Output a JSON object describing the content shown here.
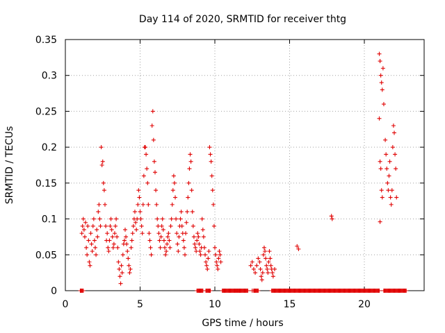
{
  "chart_data": {
    "type": "scatter",
    "title": "Day 114 of 2020, SRMTID for receiver thtg",
    "xlabel": "GPS time / hours",
    "ylabel": "SRMTID / TECUs",
    "xlim": [
      0,
      24
    ],
    "ylim": [
      0,
      0.35
    ],
    "xticks": [
      0,
      5,
      10,
      15,
      20
    ],
    "xtick_labels": [
      "0",
      "5",
      "10",
      "15",
      "20"
    ],
    "yticks": [
      0,
      0.05,
      0.1,
      0.15,
      0.2,
      0.25,
      0.3,
      0.35
    ],
    "ytick_labels": [
      "0",
      "0.05",
      "0.1",
      "0.15",
      "0.2",
      "0.25",
      "0.3",
      "0.35"
    ],
    "grid": true,
    "marker": "+",
    "color": "#e00000",
    "series": [
      {
        "name": "SRMTID",
        "points": [
          [
            1.0,
            0.0
          ],
          [
            1.1,
            0.08
          ],
          [
            1.15,
            0.09
          ],
          [
            1.2,
            0.1
          ],
          [
            1.25,
            0.085
          ],
          [
            1.3,
            0.075
          ],
          [
            1.35,
            0.095
          ],
          [
            1.4,
            0.06
          ],
          [
            1.45,
            0.05
          ],
          [
            1.5,
            0.09
          ],
          [
            1.55,
            0.07
          ],
          [
            1.6,
            0.04
          ],
          [
            1.65,
            0.035
          ],
          [
            1.7,
            0.08
          ],
          [
            1.75,
            0.065
          ],
          [
            1.8,
            0.055
          ],
          [
            1.85,
            0.09
          ],
          [
            1.9,
            0.1
          ],
          [
            1.95,
            0.07
          ],
          [
            2.0,
            0.06
          ],
          [
            2.05,
            0.05
          ],
          [
            2.1,
            0.085
          ],
          [
            2.15,
            0.075
          ],
          [
            2.2,
            0.11
          ],
          [
            2.25,
            0.12
          ],
          [
            2.3,
            0.1
          ],
          [
            2.35,
            0.09
          ],
          [
            2.4,
            0.2
          ],
          [
            2.45,
            0.175
          ],
          [
            2.5,
            0.18
          ],
          [
            2.55,
            0.15
          ],
          [
            2.6,
            0.14
          ],
          [
            2.65,
            0.12
          ],
          [
            2.7,
            0.09
          ],
          [
            2.75,
            0.07
          ],
          [
            2.8,
            0.08
          ],
          [
            2.85,
            0.06
          ],
          [
            2.9,
            0.055
          ],
          [
            2.95,
            0.07
          ],
          [
            3.0,
            0.09
          ],
          [
            3.05,
            0.1
          ],
          [
            3.1,
            0.085
          ],
          [
            3.15,
            0.075
          ],
          [
            3.2,
            0.06
          ],
          [
            3.25,
            0.065
          ],
          [
            3.3,
            0.08
          ],
          [
            3.35,
            0.09
          ],
          [
            3.4,
            0.1
          ],
          [
            3.45,
            0.075
          ],
          [
            3.5,
            0.06
          ],
          [
            3.55,
            0.04
          ],
          [
            3.6,
            0.03
          ],
          [
            3.65,
            0.02
          ],
          [
            3.7,
            0.01
          ],
          [
            3.75,
            0.035
          ],
          [
            3.8,
            0.025
          ],
          [
            3.85,
            0.05
          ],
          [
            3.9,
            0.065
          ],
          [
            3.95,
            0.07
          ],
          [
            4.0,
            0.085
          ],
          [
            4.05,
            0.075
          ],
          [
            4.1,
            0.065
          ],
          [
            4.15,
            0.055
          ],
          [
            4.2,
            0.045
          ],
          [
            4.25,
            0.035
          ],
          [
            4.3,
            0.025
          ],
          [
            4.35,
            0.03
          ],
          [
            4.4,
            0.06
          ],
          [
            4.45,
            0.07
          ],
          [
            4.5,
            0.08
          ],
          [
            4.55,
            0.09
          ],
          [
            4.6,
            0.1
          ],
          [
            4.65,
            0.11
          ],
          [
            4.7,
            0.095
          ],
          [
            4.75,
            0.085
          ],
          [
            4.8,
            0.1
          ],
          [
            4.85,
            0.12
          ],
          [
            4.9,
            0.14
          ],
          [
            4.95,
            0.13
          ],
          [
            5.0,
            0.11
          ],
          [
            5.05,
            0.1
          ],
          [
            5.1,
            0.09
          ],
          [
            5.15,
            0.08
          ],
          [
            5.2,
            0.12
          ],
          [
            5.25,
            0.16
          ],
          [
            5.3,
            0.2
          ],
          [
            5.35,
            0.2
          ],
          [
            5.4,
            0.19
          ],
          [
            5.45,
            0.17
          ],
          [
            5.5,
            0.15
          ],
          [
            5.55,
            0.12
          ],
          [
            5.6,
            0.08
          ],
          [
            5.65,
            0.07
          ],
          [
            5.7,
            0.06
          ],
          [
            5.75,
            0.05
          ],
          [
            5.8,
            0.23
          ],
          [
            5.85,
            0.25
          ],
          [
            5.9,
            0.21
          ],
          [
            5.95,
            0.18
          ],
          [
            6.0,
            0.165
          ],
          [
            6.05,
            0.14
          ],
          [
            6.1,
            0.12
          ],
          [
            6.15,
            0.1
          ],
          [
            6.2,
            0.09
          ],
          [
            6.25,
            0.08
          ],
          [
            6.3,
            0.07
          ],
          [
            6.35,
            0.06
          ],
          [
            6.4,
            0.075
          ],
          [
            6.45,
            0.09
          ],
          [
            6.5,
            0.1
          ],
          [
            6.55,
            0.085
          ],
          [
            6.6,
            0.07
          ],
          [
            6.65,
            0.06
          ],
          [
            6.7,
            0.05
          ],
          [
            6.75,
            0.055
          ],
          [
            6.8,
            0.065
          ],
          [
            6.85,
            0.075
          ],
          [
            6.9,
            0.08
          ],
          [
            6.95,
            0.07
          ],
          [
            7.0,
            0.06
          ],
          [
            7.05,
            0.09
          ],
          [
            7.1,
            0.1
          ],
          [
            7.15,
            0.12
          ],
          [
            7.2,
            0.14
          ],
          [
            7.25,
            0.16
          ],
          [
            7.3,
            0.15
          ],
          [
            7.35,
            0.13
          ],
          [
            7.4,
            0.1
          ],
          [
            7.45,
            0.08
          ],
          [
            7.5,
            0.065
          ],
          [
            7.55,
            0.055
          ],
          [
            7.6,
            0.075
          ],
          [
            7.65,
            0.09
          ],
          [
            7.7,
            0.1
          ],
          [
            7.75,
            0.11
          ],
          [
            7.8,
            0.09
          ],
          [
            7.85,
            0.08
          ],
          [
            7.9,
            0.07
          ],
          [
            7.95,
            0.06
          ],
          [
            8.0,
            0.05
          ],
          [
            8.05,
            0.08
          ],
          [
            8.1,
            0.095
          ],
          [
            8.15,
            0.11
          ],
          [
            8.2,
            0.13
          ],
          [
            8.25,
            0.15
          ],
          [
            8.3,
            0.17
          ],
          [
            8.35,
            0.19
          ],
          [
            8.4,
            0.18
          ],
          [
            8.45,
            0.14
          ],
          [
            8.5,
            0.11
          ],
          [
            8.55,
            0.09
          ],
          [
            8.6,
            0.075
          ],
          [
            8.65,
            0.065
          ],
          [
            8.7,
            0.06
          ],
          [
            8.75,
            0.055
          ],
          [
            8.8,
            0.07
          ],
          [
            8.85,
            0.08
          ],
          [
            8.9,
            0.075
          ],
          [
            8.95,
            0.065
          ],
          [
            9.0,
            0.055
          ],
          [
            9.05,
            0.05
          ],
          [
            9.1,
            0.06
          ],
          [
            9.15,
            0.1
          ],
          [
            9.2,
            0.085
          ],
          [
            9.25,
            0.075
          ],
          [
            9.3,
            0.06
          ],
          [
            9.35,
            0.05
          ],
          [
            9.4,
            0.04
          ],
          [
            9.45,
            0.035
          ],
          [
            9.5,
            0.03
          ],
          [
            9.55,
            0.045
          ],
          [
            9.6,
            0.055
          ],
          [
            9.65,
            0.2
          ],
          [
            9.7,
            0.19
          ],
          [
            9.75,
            0.18
          ],
          [
            9.8,
            0.16
          ],
          [
            9.85,
            0.14
          ],
          [
            9.9,
            0.12
          ],
          [
            9.95,
            0.09
          ],
          [
            10.0,
            0.06
          ],
          [
            10.05,
            0.05
          ],
          [
            10.1,
            0.04
          ],
          [
            10.15,
            0.035
          ],
          [
            10.2,
            0.03
          ],
          [
            10.25,
            0.045
          ],
          [
            10.3,
            0.055
          ],
          [
            10.35,
            0.05
          ],
          [
            10.4,
            0.04
          ],
          [
            10.6,
            0.0
          ],
          [
            11.0,
            0.0
          ],
          [
            11.5,
            0.0
          ],
          [
            12.0,
            0.0
          ],
          [
            12.5,
            0.0
          ],
          [
            12.4,
            0.035
          ],
          [
            12.5,
            0.04
          ],
          [
            12.6,
            0.03
          ],
          [
            12.7,
            0.025
          ],
          [
            12.8,
            0.035
          ],
          [
            12.9,
            0.045
          ],
          [
            13.0,
            0.04
          ],
          [
            13.05,
            0.03
          ],
          [
            13.1,
            0.02
          ],
          [
            13.15,
            0.015
          ],
          [
            13.2,
            0.025
          ],
          [
            13.25,
            0.05
          ],
          [
            13.3,
            0.06
          ],
          [
            13.35,
            0.055
          ],
          [
            13.4,
            0.045
          ],
          [
            13.45,
            0.035
          ],
          [
            13.5,
            0.03
          ],
          [
            13.55,
            0.025
          ],
          [
            13.6,
            0.04
          ],
          [
            13.65,
            0.055
          ],
          [
            13.7,
            0.045
          ],
          [
            13.75,
            0.035
          ],
          [
            13.8,
            0.03
          ],
          [
            13.85,
            0.025
          ],
          [
            13.9,
            0.02
          ],
          [
            14.0,
            0.03
          ],
          [
            15.5,
            0.062
          ],
          [
            15.6,
            0.058
          ],
          [
            17.8,
            0.104
          ],
          [
            17.85,
            0.1
          ],
          [
            21.0,
            0.33
          ],
          [
            21.05,
            0.32
          ],
          [
            21.1,
            0.3
          ],
          [
            21.15,
            0.29
          ],
          [
            21.2,
            0.28
          ],
          [
            21.25,
            0.31
          ],
          [
            21.3,
            0.26
          ],
          [
            21.0,
            0.24
          ],
          [
            21.05,
            0.18
          ],
          [
            21.1,
            0.17
          ],
          [
            21.15,
            0.14
          ],
          [
            21.2,
            0.13
          ],
          [
            21.05,
            0.096
          ],
          [
            21.4,
            0.21
          ],
          [
            21.45,
            0.19
          ],
          [
            21.5,
            0.17
          ],
          [
            21.55,
            0.15
          ],
          [
            21.6,
            0.14
          ],
          [
            21.65,
            0.16
          ],
          [
            21.7,
            0.18
          ],
          [
            21.75,
            0.13
          ],
          [
            21.8,
            0.12
          ],
          [
            21.85,
            0.14
          ],
          [
            21.9,
            0.2
          ],
          [
            21.95,
            0.23
          ],
          [
            22.0,
            0.22
          ],
          [
            22.05,
            0.19
          ],
          [
            22.1,
            0.17
          ],
          [
            22.15,
            0.13
          ]
        ]
      }
    ],
    "zero_segments": [
      [
        1.0,
        1.2
      ],
      [
        8.8,
        9.2
      ],
      [
        9.4,
        9.7
      ],
      [
        10.5,
        12.2
      ],
      [
        12.6,
        12.9
      ],
      [
        13.8,
        21.0
      ],
      [
        21.3,
        22.8
      ]
    ]
  }
}
